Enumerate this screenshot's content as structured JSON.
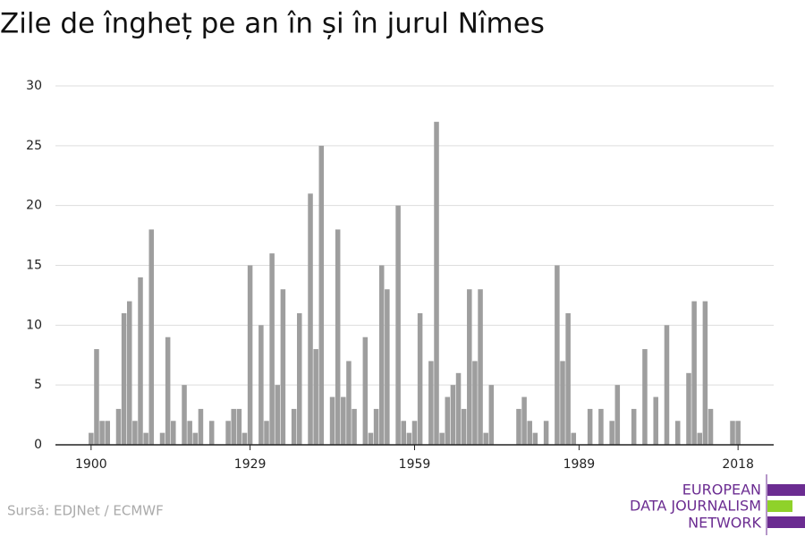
{
  "chart_data": {
    "type": "bar",
    "title": "Zile de îngheț pe an în și în jurul Nîmes",
    "source": "Sursă: EDJNet / ECMWF",
    "logo": [
      "EUROPEAN",
      "DATA JOURNALISM",
      "NETWORK"
    ],
    "color": "#9e9e9e",
    "x": [
      1900,
      1901,
      1902,
      1903,
      1904,
      1905,
      1906,
      1907,
      1908,
      1909,
      1910,
      1911,
      1912,
      1913,
      1914,
      1915,
      1916,
      1917,
      1918,
      1919,
      1920,
      1921,
      1922,
      1923,
      1924,
      1925,
      1926,
      1927,
      1928,
      1929,
      1930,
      1931,
      1932,
      1933,
      1934,
      1935,
      1936,
      1937,
      1938,
      1939,
      1940,
      1941,
      1942,
      1943,
      1944,
      1945,
      1946,
      1947,
      1948,
      1949,
      1950,
      1951,
      1952,
      1953,
      1954,
      1955,
      1956,
      1957,
      1958,
      1959,
      1960,
      1961,
      1962,
      1963,
      1964,
      1965,
      1966,
      1967,
      1968,
      1969,
      1970,
      1971,
      1972,
      1973,
      1974,
      1975,
      1976,
      1977,
      1978,
      1979,
      1980,
      1981,
      1982,
      1983,
      1984,
      1985,
      1986,
      1987,
      1988,
      1989,
      1990,
      1991,
      1992,
      1993,
      1994,
      1995,
      1996,
      1997,
      1998,
      1999,
      2000,
      2001,
      2002,
      2003,
      2004,
      2005,
      2006,
      2007,
      2008,
      2009,
      2010,
      2011,
      2012,
      2013,
      2014,
      2015,
      2016,
      2017,
      2018
    ],
    "values": [
      1,
      8,
      2,
      2,
      0,
      3,
      11,
      12,
      2,
      14,
      1,
      18,
      0,
      1,
      9,
      2,
      0,
      5,
      2,
      1,
      3,
      0,
      2,
      0,
      0,
      2,
      3,
      3,
      1,
      15,
      0,
      10,
      2,
      16,
      5,
      13,
      0,
      3,
      11,
      0,
      21,
      8,
      25,
      0,
      4,
      18,
      4,
      7,
      3,
      0,
      9,
      1,
      3,
      15,
      13,
      0,
      20,
      2,
      1,
      2,
      11,
      0,
      7,
      27,
      1,
      4,
      5,
      6,
      3,
      13,
      7,
      13,
      1,
      5,
      0,
      0,
      0,
      0,
      3,
      4,
      2,
      1,
      0,
      2,
      0,
      15,
      7,
      11,
      1,
      0,
      0,
      3,
      0,
      3,
      0,
      2,
      5,
      0,
      0,
      3,
      0,
      8,
      0,
      4,
      0,
      10,
      0,
      2,
      0,
      6,
      12,
      1,
      12,
      3,
      0,
      0,
      0,
      2,
      2
    ],
    "xlim": [
      1893.5,
      2024.5
    ],
    "xticks": [
      1900,
      1929,
      1959,
      1989,
      2018
    ],
    "ylim": [
      0,
      30
    ],
    "yticks": [
      0,
      5,
      10,
      15,
      20,
      25,
      30
    ],
    "grid": true
  }
}
